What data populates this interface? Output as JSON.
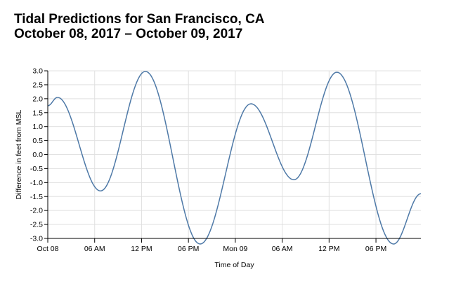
{
  "header": {
    "title_line1": "Tidal Predictions for San Francisco, CA",
    "title_line2": "October 08, 2017 – October 09, 2017"
  },
  "chart_data": {
    "type": "line",
    "xlabel": "Time of Day",
    "ylabel": "Difference in feet from MSL",
    "xlim": [
      "2017-10-08 00:00",
      "2017-10-09 23:45"
    ],
    "ylim": [
      -3.0,
      3.0
    ],
    "grid": true,
    "x_ticks": [
      {
        "time": "2017-10-08 00:00",
        "label": "Oct 08"
      },
      {
        "time": "2017-10-08 06:00",
        "label": "06 AM"
      },
      {
        "time": "2017-10-08 12:00",
        "label": "12 PM"
      },
      {
        "time": "2017-10-08 18:00",
        "label": "06 PM"
      },
      {
        "time": "2017-10-09 00:00",
        "label": "Mon 09"
      },
      {
        "time": "2017-10-09 06:00",
        "label": "06 AM"
      },
      {
        "time": "2017-10-09 12:00",
        "label": "12 PM"
      },
      {
        "time": "2017-10-09 18:00",
        "label": "06 PM"
      }
    ],
    "y_ticks": [
      "3.0",
      "2.5",
      "2.0",
      "1.5",
      "1.0",
      "0.5",
      "0.0",
      "-0.5",
      "-1.0",
      "-1.5",
      "-2.0",
      "-2.5",
      "-3.0"
    ],
    "series": [
      {
        "color": "#4e79a7",
        "x": [
          "2017-10-08 00:00",
          "2017-10-08 01:15",
          "2017-10-08 06:45",
          "2017-10-08 12:30",
          "2017-10-08 19:30",
          "2017-10-09 02:00",
          "2017-10-09 07:30",
          "2017-10-09 13:00",
          "2017-10-09 20:15",
          "2017-10-09 23:45"
        ],
        "y": [
          1.75,
          2.05,
          -1.3,
          2.98,
          -3.2,
          1.82,
          -0.9,
          2.95,
          -3.2,
          -1.4
        ]
      }
    ]
  }
}
